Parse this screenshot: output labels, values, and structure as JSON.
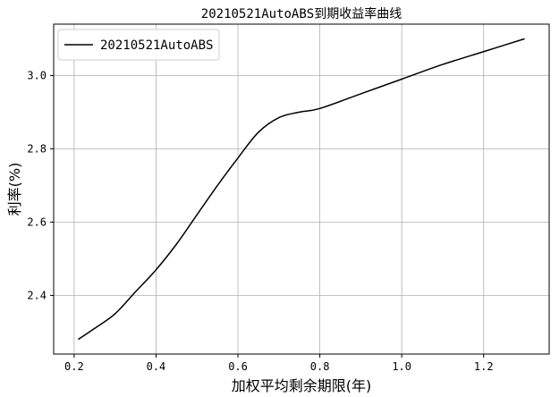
{
  "chart_data": {
    "type": "line",
    "title": "20210521AutoABS到期收益率曲线",
    "xlabel": "加权平均剩余期限(年)",
    "ylabel": "利率(%)",
    "xlim": [
      0.15,
      1.36
    ],
    "ylim": [
      2.24,
      3.14
    ],
    "xticks": [
      0.2,
      0.4,
      0.6,
      0.8,
      1.0,
      1.2
    ],
    "xtick_labels": [
      "0.2",
      "0.4",
      "0.6",
      "0.8",
      "1.0",
      "1.2"
    ],
    "yticks": [
      2.4,
      2.6,
      2.8,
      3.0
    ],
    "ytick_labels": [
      "2.4",
      "2.6",
      "2.8",
      "3.0"
    ],
    "grid": true,
    "legend_position": "top-left",
    "series": [
      {
        "name": "20210521AutoABS",
        "color": "#000000",
        "x": [
          0.21,
          0.25,
          0.3,
          0.35,
          0.4,
          0.45,
          0.5,
          0.55,
          0.6,
          0.65,
          0.7,
          0.75,
          0.8,
          0.9,
          1.0,
          1.1,
          1.2,
          1.3
        ],
        "y": [
          2.28,
          2.31,
          2.35,
          2.41,
          2.47,
          2.54,
          2.62,
          2.7,
          2.775,
          2.845,
          2.885,
          2.9,
          2.91,
          2.95,
          2.99,
          3.03,
          3.065,
          3.1
        ]
      }
    ]
  }
}
